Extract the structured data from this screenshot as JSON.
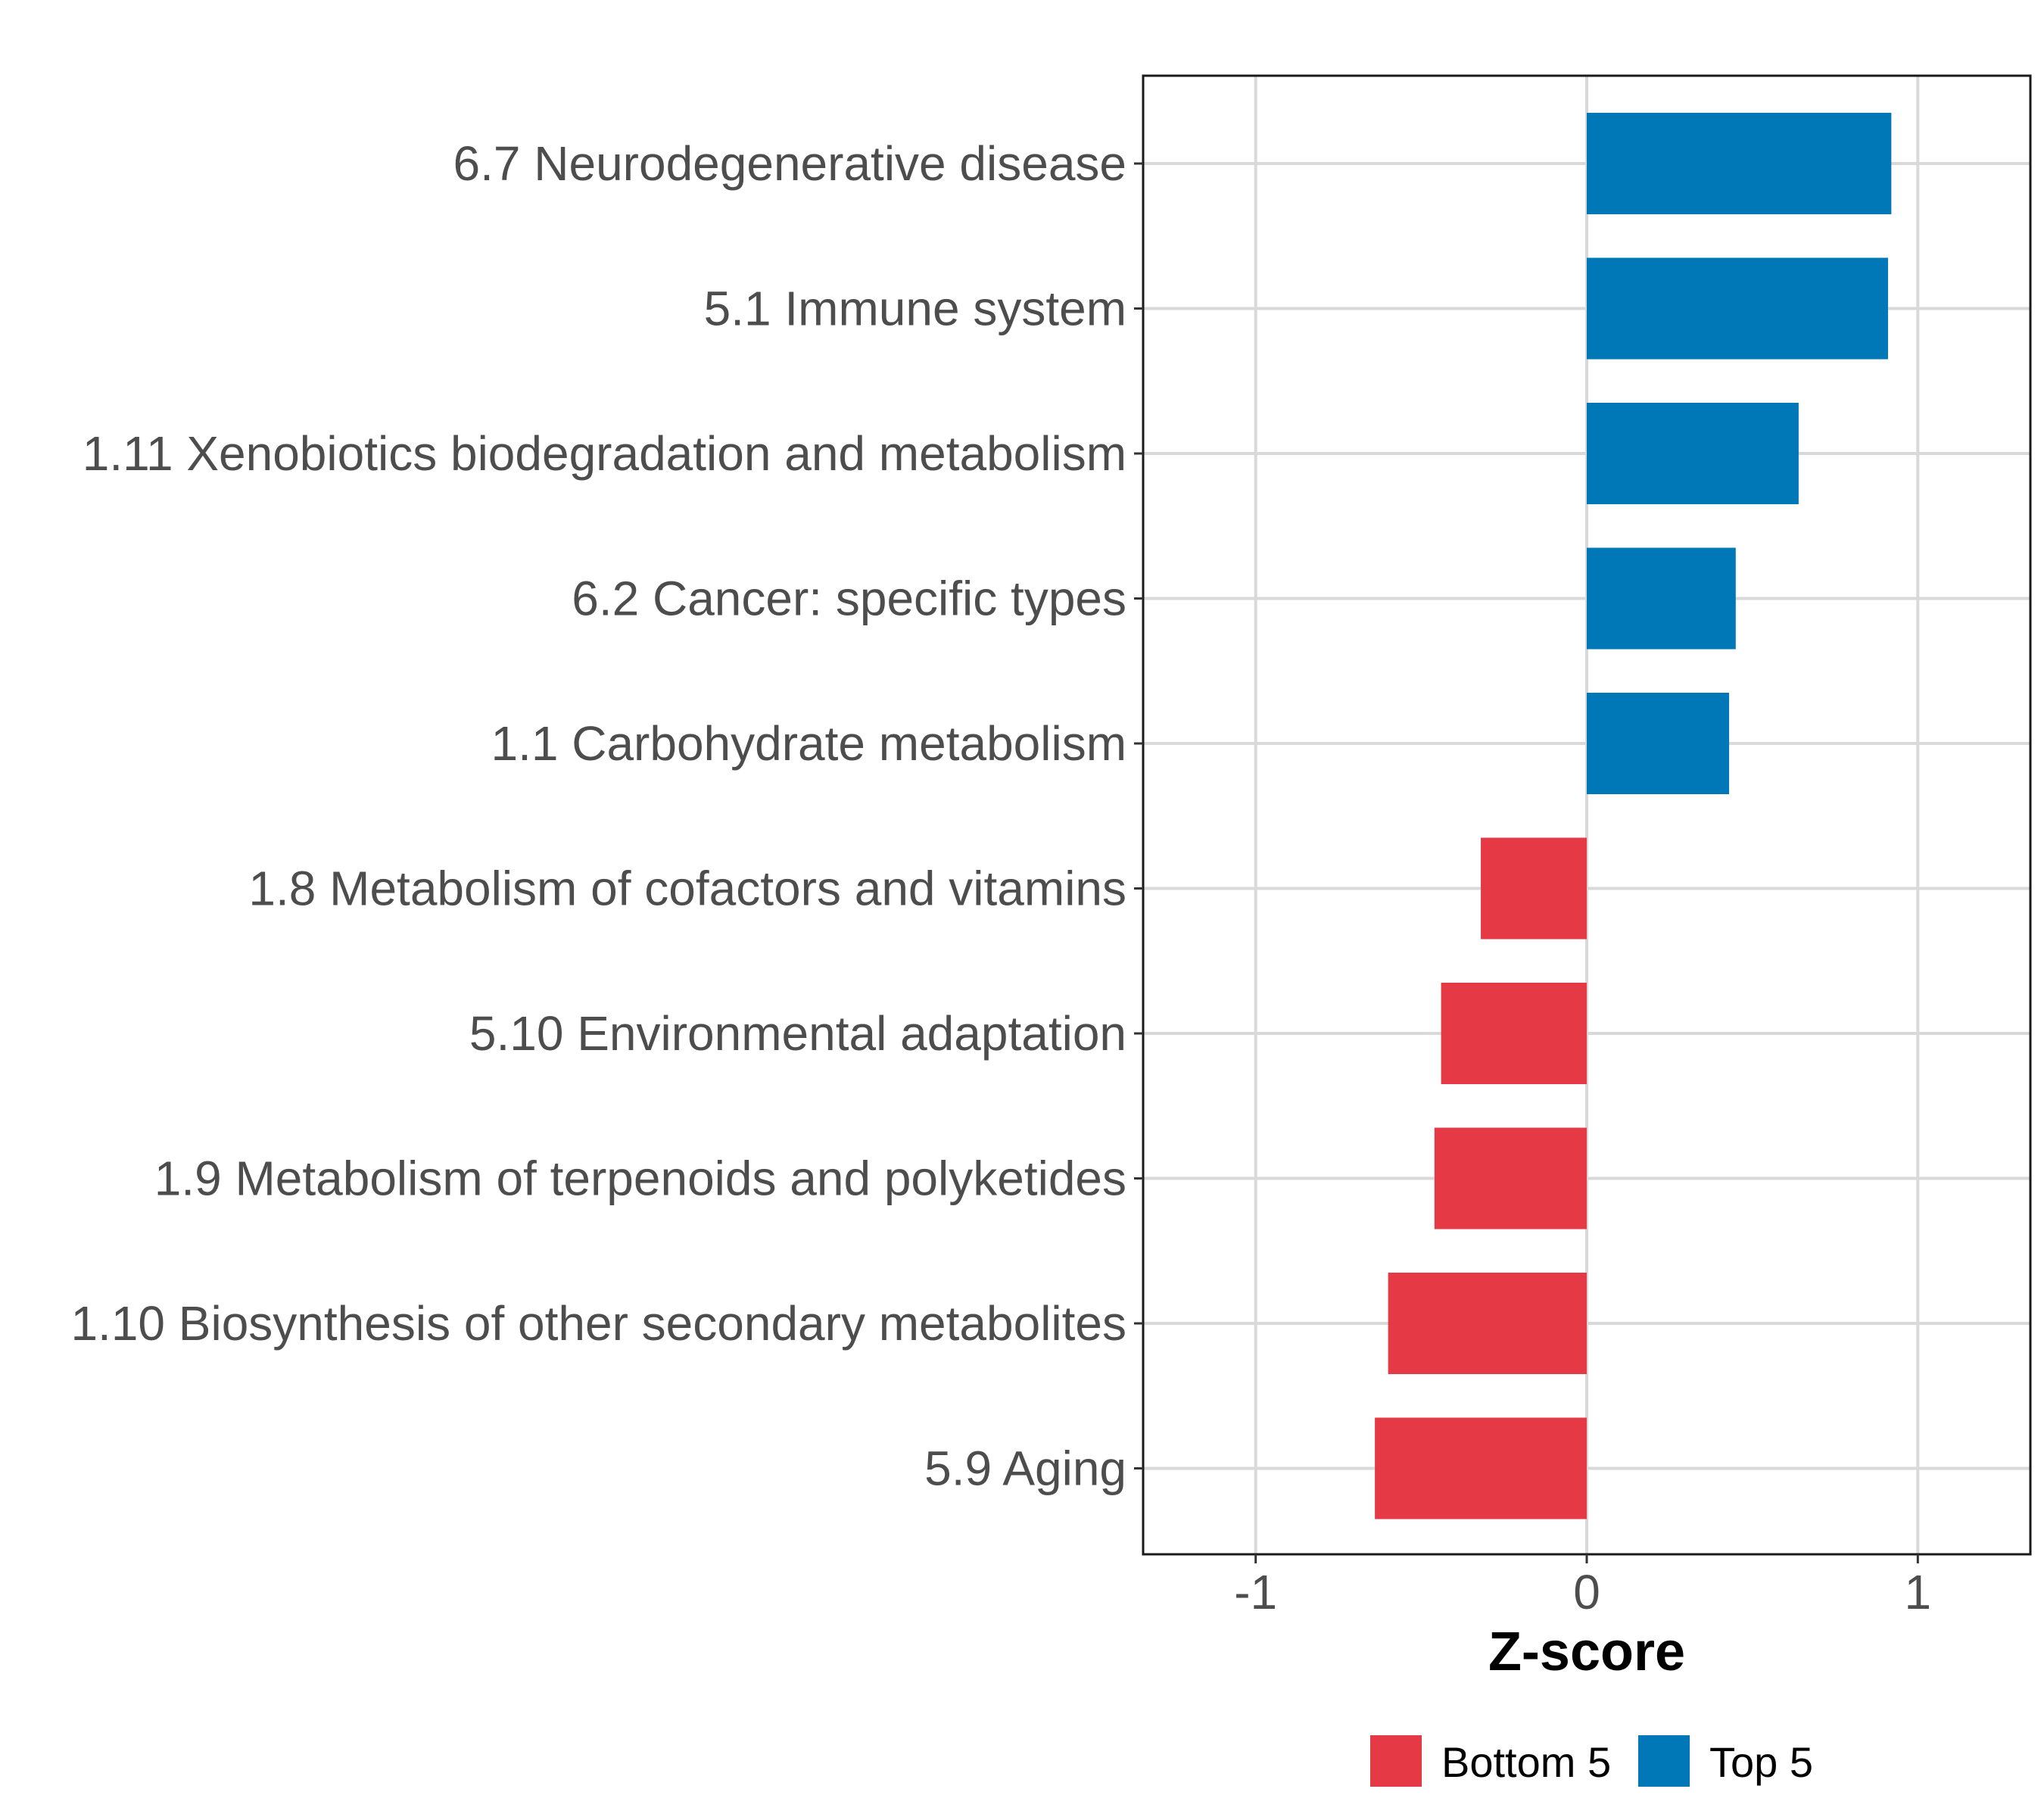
{
  "chart_data": {
    "type": "bar",
    "orientation": "horizontal",
    "title": "",
    "xlabel": "Z-score",
    "ylabel": "",
    "xlim": [
      -1.34,
      1.34
    ],
    "xticks": [
      -1,
      0,
      1
    ],
    "xtick_labels": [
      "-1",
      "0",
      "1"
    ],
    "grid": true,
    "legend_placement": "bottom",
    "categories": [
      "6.7 Neurodegenerative disease",
      "5.1 Immune system",
      "1.11 Xenobiotics biodegradation and metabolism",
      "6.2 Cancer: specific types",
      "1.1 Carbohydrate metabolism",
      "1.8 Metabolism of cofactors and vitamins",
      "5.10 Environmental adaptation",
      "1.9 Metabolism of terpenoids and polyketides",
      "1.10 Biosynthesis of other secondary metabolites",
      "5.9 Aging"
    ],
    "values": [
      0.92,
      0.91,
      0.64,
      0.45,
      0.43,
      -0.32,
      -0.44,
      -0.46,
      -0.6,
      -0.64
    ],
    "groups": [
      "Top 5",
      "Top 5",
      "Top 5",
      "Top 5",
      "Top 5",
      "Bottom 5",
      "Bottom 5",
      "Bottom 5",
      "Bottom 5",
      "Bottom 5"
    ],
    "legend": [
      {
        "name": "Bottom 5",
        "color": "#E63946"
      },
      {
        "name": "Top 5",
        "color": "#0077B6"
      }
    ]
  },
  "colors": {
    "grid": "#d9d9d9",
    "panel_border": "#1a1a1a",
    "axis_text": "#4d4d4d"
  }
}
